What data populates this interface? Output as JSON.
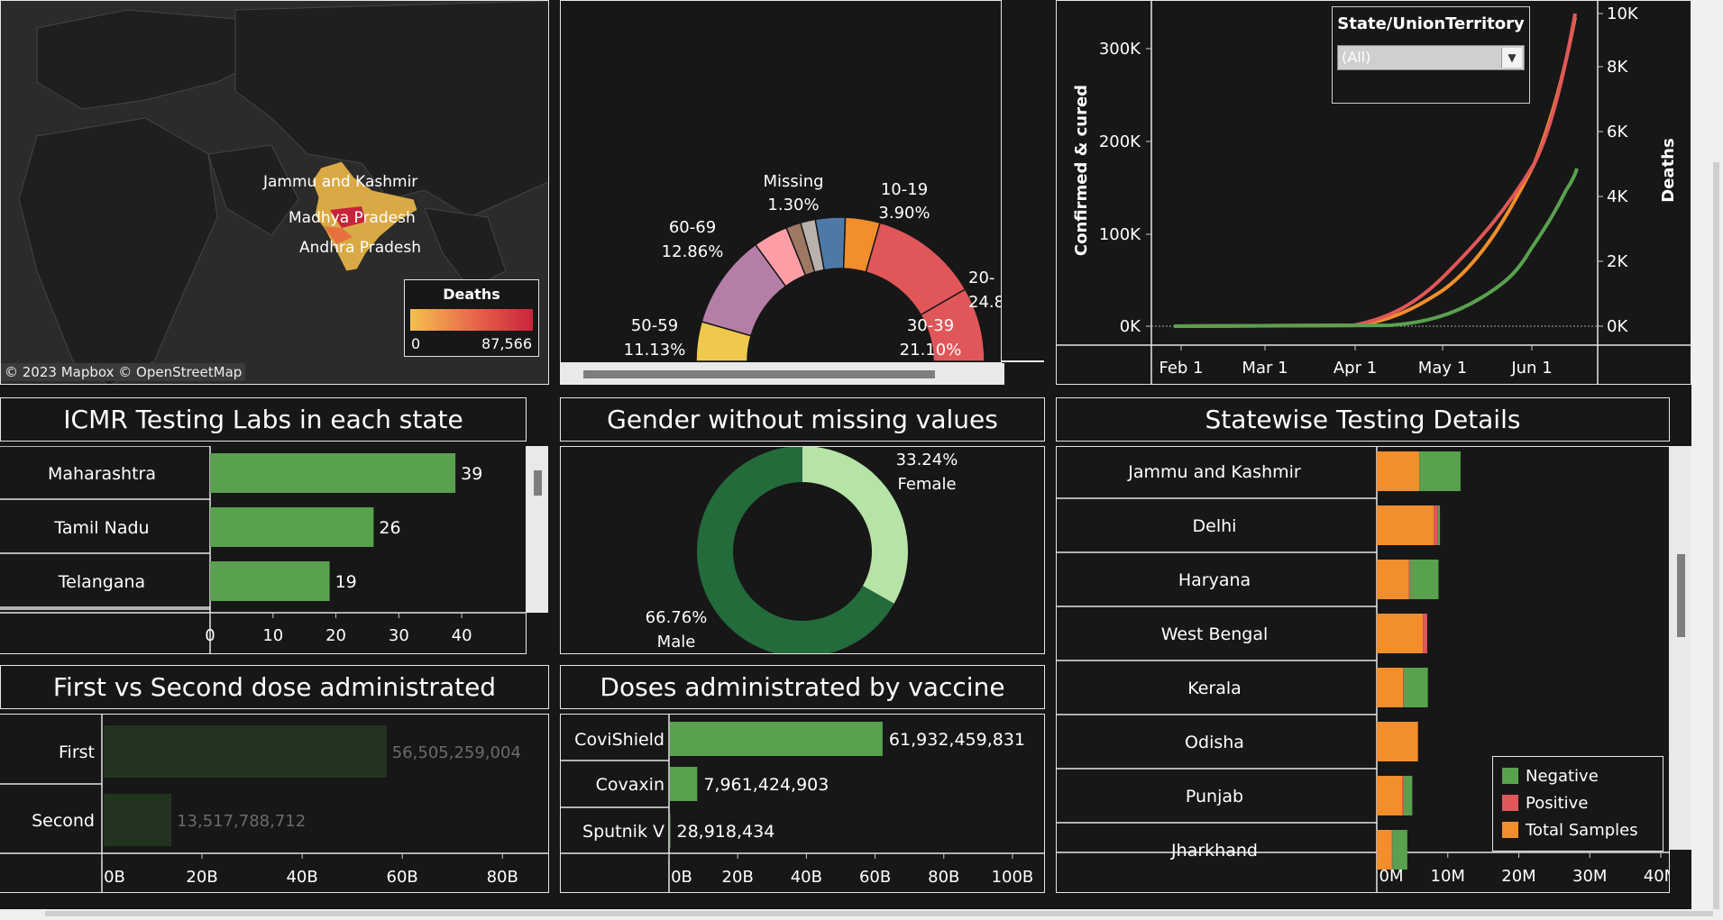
{
  "map": {
    "labels": [
      "Jammu and Kashmir",
      "Madhya Pradesh",
      "Andhra Pradesh"
    ],
    "legend_title": "Deaths",
    "legend_min": "0",
    "legend_max": "87,566",
    "attribution": "© 2023 Mapbox © OpenStreetMap",
    "colors": {
      "low": "#f4c04f",
      "high": "#c8233a"
    }
  },
  "age_chart": {
    "segments": [
      {
        "label": "50-59",
        "pct": "11.13%",
        "color": "#eec94e"
      },
      {
        "label": "60-69",
        "pct": "12.86%",
        "color": "#b57ea7"
      },
      {
        "label": "",
        "pct": "",
        "color": "#ff9ea7"
      },
      {
        "label": "",
        "pct": "",
        "color": "#9e7863"
      },
      {
        "label": "Missing",
        "pct": "1.30%",
        "color": "#bab0ac"
      },
      {
        "label": "10-19",
        "pct": "3.90%",
        "color": "#4e79a7"
      },
      {
        "label": "",
        "pct": "",
        "color": "#f28e2b"
      },
      {
        "label": "30-39",
        "pct": "21.10%",
        "color": "#e15759"
      },
      {
        "label": "20-",
        "pct": "24.8",
        "color": "#e15759"
      }
    ]
  },
  "timeline": {
    "filter_title": "State/UnionTerritory",
    "filter_value": "(All)",
    "y_left_label": "Confirmed & cured",
    "y_right_label": "Deaths",
    "y_left_ticks": [
      "0K",
      "100K",
      "200K",
      "300K"
    ],
    "y_right_ticks": [
      "0K",
      "2K",
      "4K",
      "6K",
      "8K",
      "10K"
    ],
    "x_ticks": [
      "Feb 1",
      "Mar 1",
      "Apr 1",
      "May 1",
      "Jun 1"
    ],
    "colors": {
      "confirmed": "#f28e2b",
      "cured": "#59a14f",
      "deaths": "#e15759"
    }
  },
  "chart_data": [
    {
      "type": "bar",
      "title": "ICMR Testing Labs in each state",
      "categories": [
        "Maharashtra",
        "Tamil Nadu",
        "Telangana"
      ],
      "values": [
        39,
        26,
        19
      ],
      "xlim": [
        0,
        45
      ],
      "x_ticks": [
        "0",
        "10",
        "20",
        "30",
        "40"
      ],
      "color": "#59a14f"
    },
    {
      "type": "pie",
      "title": "Gender without missing values",
      "slices": [
        {
          "name": "Female",
          "pct": 33.24,
          "label": "33.24%",
          "color": "#b6e3a6"
        },
        {
          "name": "Male",
          "pct": 66.76,
          "label": "66.76%",
          "color": "#236b3b"
        }
      ]
    },
    {
      "type": "bar",
      "title": "Statewise Testing Details",
      "categories": [
        "Jammu and Kashmir",
        "Delhi",
        "Haryana",
        "West Bengal",
        "Kerala",
        "Odisha",
        "Punjab",
        "Jharkhand"
      ],
      "series": [
        {
          "name": "Total Samples",
          "values": [
            6.0,
            8.0,
            4.5,
            6.5,
            3.7,
            5.8,
            3.6,
            2.1
          ]
        },
        {
          "name": "Positive",
          "values": [
            0,
            0.6,
            0.2,
            0.6,
            0.1,
            0,
            0.2,
            0.1
          ]
        },
        {
          "name": "Negative",
          "values": [
            5.8,
            0.3,
            4.0,
            0,
            3.4,
            0,
            1.2,
            2.1
          ]
        }
      ],
      "xlim": [
        0,
        40
      ],
      "x_ticks": [
        "0M",
        "10M",
        "20M",
        "30M",
        "40M"
      ],
      "legend": [
        "Negative",
        "Positive",
        "Total Samples"
      ],
      "colors": {
        "Negative": "#59a14f",
        "Positive": "#e15759",
        "Total Samples": "#f28e2b"
      }
    },
    {
      "type": "bar",
      "title": "First vs Second dose administrated",
      "categories": [
        "First",
        "Second"
      ],
      "values": [
        56505259004,
        13517788712
      ],
      "labels": [
        "56,505,259,004",
        "13,517,788,712"
      ],
      "xlim": [
        0,
        85000000000
      ],
      "x_ticks": [
        "0B",
        "20B",
        "40B",
        "60B",
        "80B"
      ],
      "color": "#22331f"
    },
    {
      "type": "bar",
      "title": "Doses administrated by vaccine",
      "categories": [
        "CoviShield",
        "Covaxin",
        "Sputnik V"
      ],
      "values": [
        61932459831,
        7961424903,
        28918434
      ],
      "labels": [
        "61,932,459,831",
        "7,961,424,903",
        "28,918,434"
      ],
      "xlim": [
        0,
        105000000000
      ],
      "x_ticks": [
        "0B",
        "20B",
        "40B",
        "60B",
        "80B",
        "100B"
      ],
      "color": "#59a14f"
    }
  ]
}
